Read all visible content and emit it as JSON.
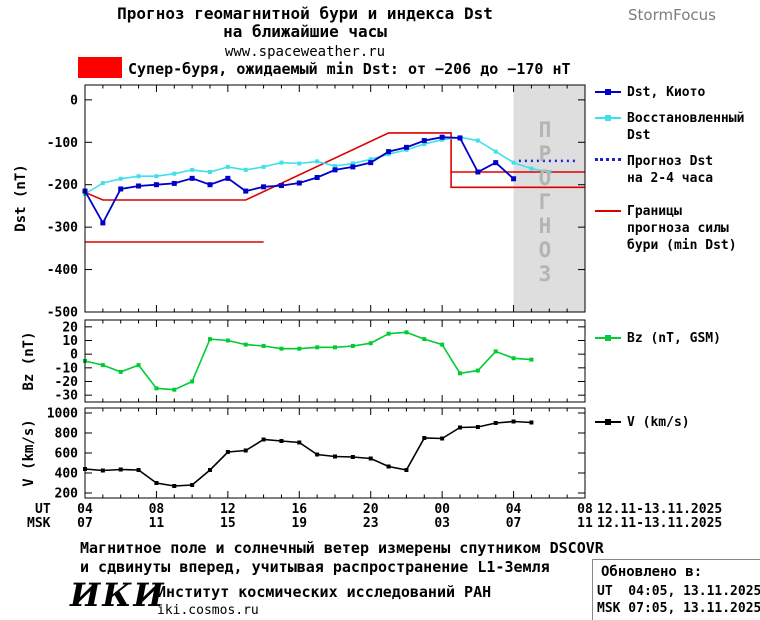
{
  "header": {
    "title_line1": "Прогноз геомагнитной бури и индекса Dst",
    "title_line2": "на ближайшие часы",
    "site": "www.spaceweather.ru",
    "brand": "StormFocus"
  },
  "alert": {
    "text": "Супер-буря, ожидаемый min Dst: от −206 до −170 нТ"
  },
  "legend": {
    "dst_kyoto": "Dst, Киото",
    "dst_restored": "Восстановленный\nDst",
    "dst_forecast": "Прогноз Dst\nна 2-4 часа",
    "bounds": "Границы\nпрогноза силы\nбури (min Dst)",
    "bz": "Bz (nT, GSM)",
    "v": "V (km/s)"
  },
  "watermark": "ПРОГНОЗ",
  "axis": {
    "ut": "UT",
    "msk": "MSK",
    "ut_date": "12.11-13.11.2025",
    "msk_date": "12.11-13.11.2025"
  },
  "footer": {
    "note_line1": "Магнитное поле и солнечный ветер измерены спутником DSCOVR",
    "note_line2": "и сдвинуты вперед, учитывая распространение L1-Земля",
    "logo": "ИКИ",
    "institute": "Институт космических исследований РАН",
    "website": "iki.cosmos.ru",
    "updated_label": "Обновлено в:",
    "updated_ut": "UT  04:05, 13.11.2025",
    "updated_msk": "MSK 07:05, 13.11.2025"
  },
  "colors": {
    "kyoto": "#0000c8",
    "restored": "#3fe0ec",
    "forecast": "#2020cc",
    "bounds": "#dd0000",
    "bz": "#00cc33",
    "v": "#000000",
    "forecast_region": "#dedede",
    "watermark": "#b4b4b4",
    "alert": "#ff0000",
    "brand": "#7d7d7d"
  },
  "chart_data": [
    {
      "id": "dst",
      "type": "line",
      "ylabel": "Dst (nT)",
      "ylim": [
        -500,
        35
      ],
      "yticks": [
        0,
        -100,
        -200,
        -300,
        -400,
        -500
      ],
      "xlim": [
        4,
        32
      ],
      "xticks": [
        4,
        8,
        12,
        16,
        20,
        24,
        28,
        32
      ],
      "forecast_region": {
        "from": 28,
        "to": 32
      },
      "series": [
        {
          "key": "bounds",
          "name": "Границы прогноза силы бури (min Dst)",
          "color_key": "bounds",
          "width": 1.6,
          "segments": [
            [
              [
                4,
                -335
              ],
              [
                14,
                -335
              ]
            ],
            [
              [
                4,
                -218
              ],
              [
                5,
                -236
              ],
              [
                13,
                -236
              ],
              [
                21,
                -78
              ],
              [
                24.5,
                -78
              ],
              [
                24.5,
                -206
              ],
              [
                32,
                -206
              ]
            ],
            [
              [
                24.5,
                -170
              ],
              [
                32,
                -170
              ]
            ]
          ]
        },
        {
          "key": "restored",
          "name": "Восстановленный Dst",
          "color_key": "restored",
          "width": 1.6,
          "marker": 4,
          "points": [
            [
              4,
              -222
            ],
            [
              5,
              -196
            ],
            [
              6,
              -186
            ],
            [
              7,
              -180
            ],
            [
              8,
              -180
            ],
            [
              9,
              -174
            ],
            [
              10,
              -165
            ],
            [
              11,
              -170
            ],
            [
              12,
              -158
            ],
            [
              13,
              -165
            ],
            [
              14,
              -158
            ],
            [
              15,
              -148
            ],
            [
              16,
              -150
            ],
            [
              17,
              -145
            ],
            [
              18,
              -156
            ],
            [
              19,
              -150
            ],
            [
              20,
              -140
            ],
            [
              21,
              -128
            ],
            [
              22,
              -118
            ],
            [
              23,
              -104
            ],
            [
              24,
              -94
            ],
            [
              25,
              -88
            ],
            [
              26,
              -96
            ],
            [
              27,
              -122
            ],
            [
              28,
              -148
            ],
            [
              29,
              -162
            ],
            [
              30,
              -170
            ]
          ]
        },
        {
          "key": "kyoto",
          "name": "Dst, Киото",
          "color_key": "kyoto",
          "width": 1.8,
          "marker": 5,
          "points": [
            [
              4,
              -215
            ],
            [
              5,
              -290
            ],
            [
              6,
              -210
            ],
            [
              7,
              -203
            ],
            [
              8,
              -200
            ],
            [
              9,
              -197
            ],
            [
              10,
              -185
            ],
            [
              11,
              -200
            ],
            [
              12,
              -185
            ],
            [
              13,
              -215
            ],
            [
              14,
              -205
            ],
            [
              15,
              -202
            ],
            [
              16,
              -196
            ],
            [
              17,
              -183
            ],
            [
              18,
              -165
            ],
            [
              19,
              -158
            ],
            [
              20,
              -148
            ],
            [
              21,
              -122
            ],
            [
              22,
              -112
            ],
            [
              23,
              -96
            ],
            [
              24,
              -88
            ],
            [
              25,
              -90
            ],
            [
              26,
              -170
            ],
            [
              27,
              -148
            ],
            [
              28,
              -186
            ]
          ]
        },
        {
          "key": "forecast",
          "name": "Прогноз Dst на 2-4 часа",
          "color_key": "forecast",
          "width": 2.5,
          "dash": "2,4",
          "points": [
            [
              28.3,
              -144
            ],
            [
              31.5,
              -144
            ]
          ]
        }
      ]
    },
    {
      "id": "bz",
      "type": "line",
      "ylabel": "Bz (nT)",
      "ylim": [
        -35,
        25
      ],
      "yticks": [
        20,
        10,
        0,
        -10,
        -20,
        -30
      ],
      "xlim": [
        4,
        32
      ],
      "xticks": [
        4,
        8,
        12,
        16,
        20,
        24,
        28,
        32
      ],
      "series": [
        {
          "key": "bz",
          "name": "Bz (nT, GSM)",
          "color_key": "bz",
          "width": 1.6,
          "marker": 4,
          "points": [
            [
              4,
              -5
            ],
            [
              5,
              -8
            ],
            [
              6,
              -13
            ],
            [
              7,
              -8
            ],
            [
              8,
              -25
            ],
            [
              9,
              -26
            ],
            [
              10,
              -20
            ],
            [
              11,
              11
            ],
            [
              12,
              10
            ],
            [
              13,
              7
            ],
            [
              14,
              6
            ],
            [
              15,
              4
            ],
            [
              16,
              4
            ],
            [
              17,
              5
            ],
            [
              18,
              5
            ],
            [
              19,
              6
            ],
            [
              20,
              8
            ],
            [
              21,
              15
            ],
            [
              22,
              16
            ],
            [
              23,
              11
            ],
            [
              24,
              7
            ],
            [
              25,
              -14
            ],
            [
              26,
              -12
            ],
            [
              27,
              2
            ],
            [
              28,
              -3
            ],
            [
              29,
              -4
            ]
          ]
        }
      ]
    },
    {
      "id": "v",
      "type": "line",
      "ylabel": "V (km/s)",
      "ylim": [
        150,
        1050
      ],
      "yticks": [
        1000,
        800,
        600,
        400,
        200
      ],
      "xlim": [
        4,
        32
      ],
      "xticks": [
        4,
        8,
        12,
        16,
        20,
        24,
        28,
        32
      ],
      "xtick_labels_ut": [
        "04",
        "08",
        "12",
        "16",
        "20",
        "00",
        "04",
        "08"
      ],
      "xtick_labels_msk": [
        "07",
        "11",
        "15",
        "19",
        "23",
        "03",
        "07",
        "11"
      ],
      "series": [
        {
          "key": "v",
          "name": "V (km/s)",
          "color_key": "v",
          "width": 1.6,
          "marker": 4,
          "points": [
            [
              4,
              440
            ],
            [
              5,
              425
            ],
            [
              6,
              435
            ],
            [
              7,
              430
            ],
            [
              8,
              300
            ],
            [
              9,
              270
            ],
            [
              10,
              280
            ],
            [
              11,
              430
            ],
            [
              12,
              610
            ],
            [
              13,
              625
            ],
            [
              14,
              735
            ],
            [
              15,
              720
            ],
            [
              16,
              705
            ],
            [
              17,
              585
            ],
            [
              18,
              565
            ],
            [
              19,
              560
            ],
            [
              20,
              545
            ],
            [
              21,
              465
            ],
            [
              22,
              430
            ],
            [
              23,
              750
            ],
            [
              24,
              745
            ],
            [
              25,
              855
            ],
            [
              26,
              860
            ],
            [
              27,
              900
            ],
            [
              28,
              915
            ],
            [
              29,
              905
            ]
          ]
        }
      ]
    }
  ]
}
